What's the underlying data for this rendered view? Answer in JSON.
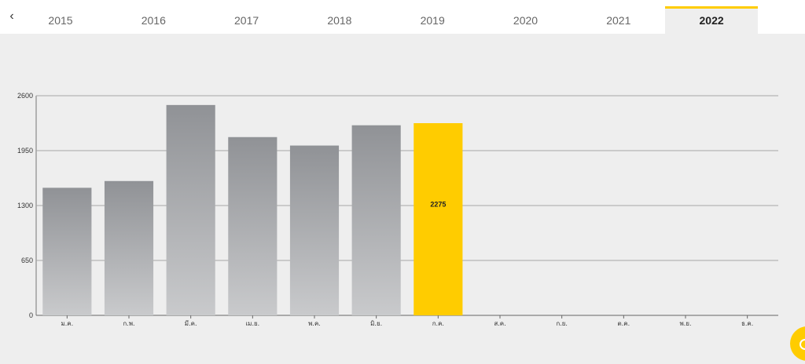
{
  "tabs": {
    "back_label": "‹",
    "years": [
      "2015",
      "2016",
      "2017",
      "2018",
      "2019",
      "2020",
      "2021",
      "2022"
    ],
    "active_index": 7
  },
  "colors": {
    "bar": "#9a9c9f",
    "highlight": "#ffcc00",
    "grid": "#999999"
  },
  "chart_data": {
    "type": "bar",
    "categories": [
      "ม.ค.",
      "ก.พ.",
      "มี.ค.",
      "เม.ย.",
      "พ.ค.",
      "มิ.ย.",
      "ก.ค.",
      "ส.ค.",
      "ก.ย.",
      "ต.ค.",
      "พ.ย.",
      "ธ.ค."
    ],
    "values": [
      1510,
      1590,
      2490,
      2110,
      2010,
      2250,
      2275,
      0,
      0,
      0,
      0,
      0
    ],
    "highlight_index": 6,
    "highlight_label": "2275",
    "ylim": [
      0,
      2600
    ],
    "yticks": [
      "0",
      "650",
      "1300",
      "1950",
      "2600"
    ],
    "grid": true,
    "title": "",
    "xlabel": "",
    "ylabel": ""
  }
}
